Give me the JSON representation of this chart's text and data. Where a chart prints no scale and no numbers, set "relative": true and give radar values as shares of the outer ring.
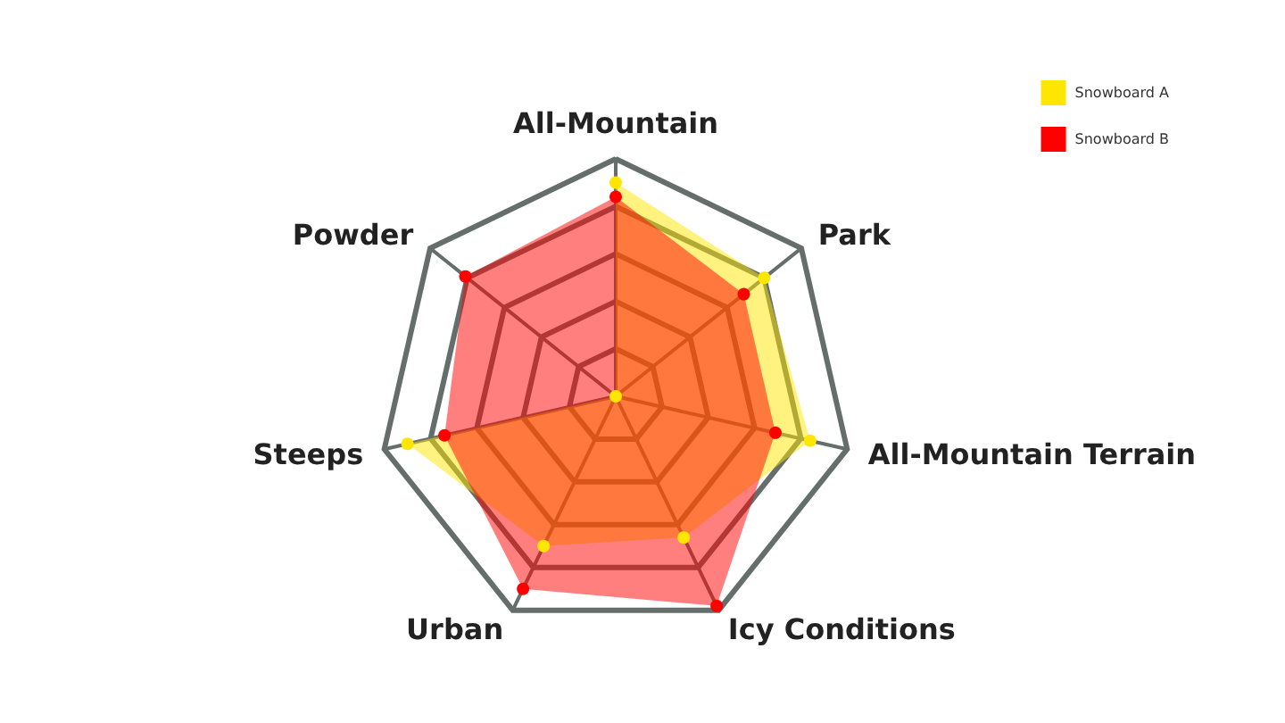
{
  "chart_data": {
    "type": "radar",
    "relative": true,
    "categories": [
      "All-Mountain",
      "Park",
      "All-Mountain Terrain",
      "Icy Conditions",
      "Urban",
      "Steeps",
      "Powder"
    ],
    "series": [
      {
        "name": "Snowboard A",
        "color": "#ffe600",
        "values": [
          0.9,
          0.8,
          0.84,
          0.66,
          0.7,
          0.9,
          0
        ]
      },
      {
        "name": "Snowboard B",
        "color": "#ff0000",
        "values": [
          0.84,
          0.69,
          0.69,
          0.98,
          0.9,
          0.74,
          0.81
        ]
      }
    ],
    "legend": "top right",
    "marker": "circle"
  }
}
